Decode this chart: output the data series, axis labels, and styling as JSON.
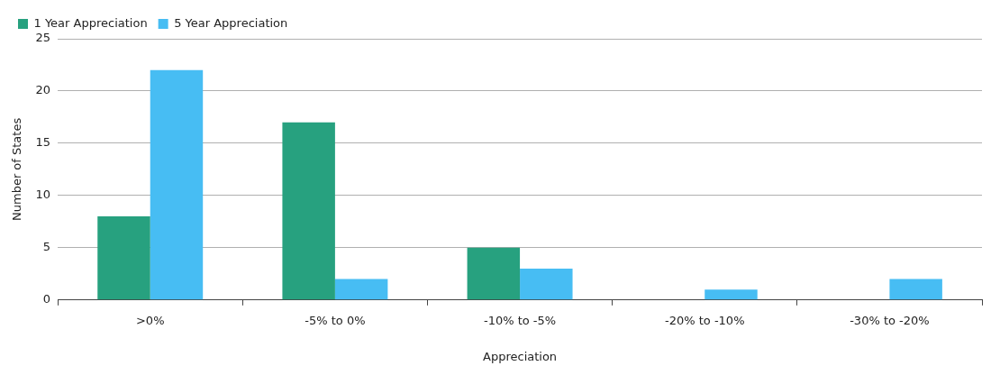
{
  "chart_data": {
    "type": "bar",
    "xlabel": "Appreciation",
    "ylabel": "Number of States",
    "categories": [
      ">0%",
      "-5% to 0%",
      "-10% to -5%",
      "-20% to -10%",
      "-30% to -20%"
    ],
    "series": [
      {
        "name": "1 Year Appreciation",
        "color": "#27a17f",
        "values": [
          8,
          17,
          5,
          0,
          0
        ]
      },
      {
        "name": "5 Year Appreciation",
        "color": "#47bdf3",
        "values": [
          22,
          2,
          3,
          1,
          2
        ]
      }
    ],
    "ylim": [
      0,
      25
    ],
    "yticks": [
      0,
      5,
      10,
      15,
      20,
      25
    ],
    "grid": "y",
    "legend": "top left"
  }
}
